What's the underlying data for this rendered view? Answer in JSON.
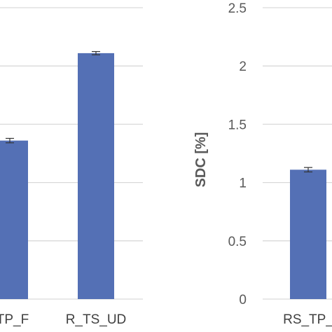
{
  "chart_data": [
    {
      "type": "bar",
      "categories": [
        "TP_F",
        "R_TS_UD"
      ],
      "values": [
        1.36,
        2.11
      ],
      "error": [
        0.01,
        0.005
      ],
      "title": "",
      "xlabel": "",
      "ylabel": "",
      "ylim": [
        0,
        2.5
      ],
      "grid": true,
      "bar_color": "#5470b5",
      "grid_color": "#d9d9d9"
    },
    {
      "type": "bar",
      "categories": [
        "RS_TP_"
      ],
      "values": [
        1.11
      ],
      "error": [
        0.01
      ],
      "title": "",
      "xlabel": "",
      "ylabel": "SDC [%]",
      "ylim": [
        0,
        2.5
      ],
      "ticks": [
        "0",
        "0.5",
        "1",
        "1.5",
        "2",
        "2.5"
      ],
      "grid": true,
      "bar_color": "#5470b5",
      "grid_color": "#d9d9d9"
    }
  ]
}
